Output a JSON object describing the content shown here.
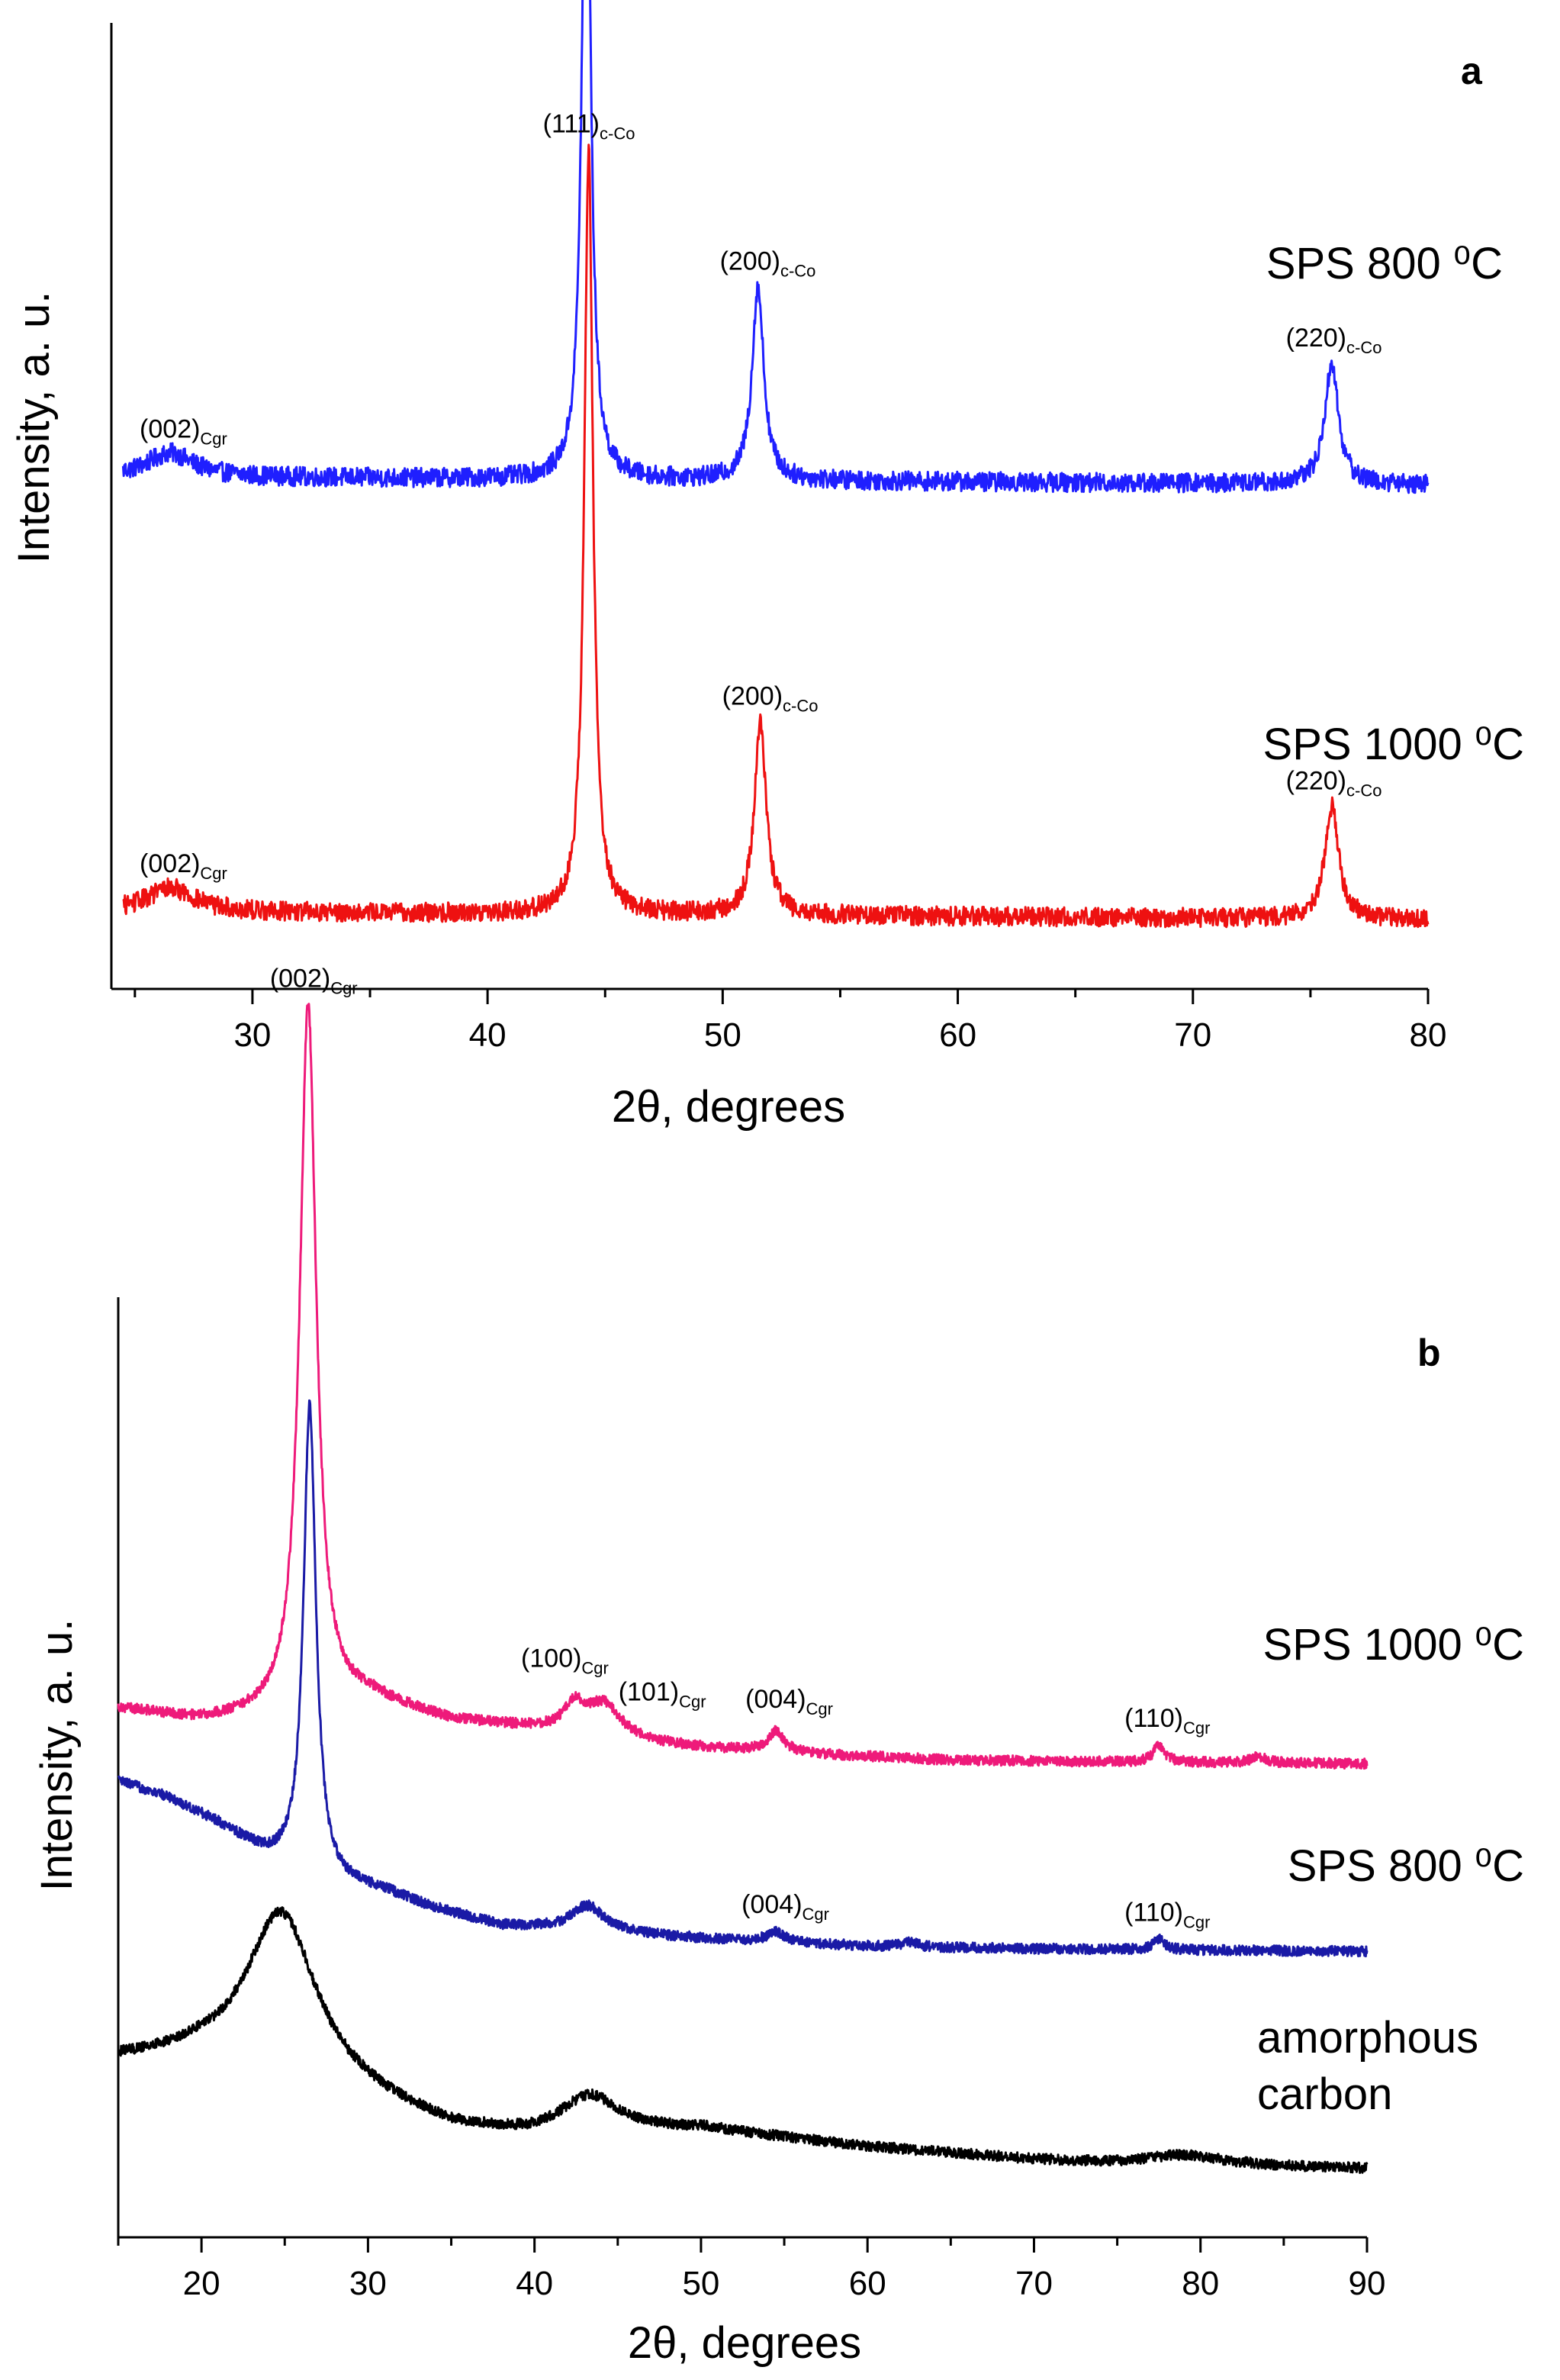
{
  "chart_data": [
    {
      "panel": "a",
      "type": "line",
      "xlabel": "2θ, degrees",
      "ylabel": "Intensity, a. u.",
      "xlim": [
        24,
        80
      ],
      "xticks": [
        30,
        40,
        50,
        60,
        70,
        80
      ],
      "yticks": "none",
      "grid": false,
      "baseline_noise": 0.012,
      "series": [
        {
          "name": "SPS 800 ⁰C",
          "color": "#1f1fff",
          "offset": 0.54,
          "baseline": [
            [
              24,
              0.01
            ],
            [
              80,
              0.0
            ]
          ],
          "peaks": [
            {
              "x": 26.5,
              "height": 0.03,
              "width": 1.2
            },
            {
              "x": 44.2,
              "height": 0.92,
              "width": 0.22
            },
            {
              "x": 51.5,
              "height": 0.24,
              "width": 0.3
            },
            {
              "x": 75.9,
              "height": 0.15,
              "width": 0.35
            }
          ]
        },
        {
          "name": "SPS 1000 ⁰C",
          "color": "#ee1111",
          "offset": 0.0,
          "baseline": [
            [
              24,
              0.01
            ],
            [
              80,
              0.0
            ]
          ],
          "peaks": [
            {
              "x": 26.5,
              "height": 0.03,
              "width": 1.2
            },
            {
              "x": 44.3,
              "height": 0.95,
              "width": 0.22
            },
            {
              "x": 51.6,
              "height": 0.24,
              "width": 0.3
            },
            {
              "x": 75.9,
              "height": 0.14,
              "width": 0.35
            }
          ]
        }
      ],
      "annotations": [
        {
          "series": 0,
          "text": "(002)",
          "sub": "Cgr",
          "x": 26.5
        },
        {
          "series": 0,
          "text": "(111)",
          "sub": "c-Co",
          "x": 44.2
        },
        {
          "series": 0,
          "text": "(200)",
          "sub": "c-Co",
          "x": 51.5
        },
        {
          "series": 0,
          "text": "(220)",
          "sub": "c-Co",
          "x": 75.9
        },
        {
          "series": 1,
          "text": "(002)",
          "sub": "Cgr",
          "x": 26.5
        },
        {
          "series": 1,
          "text": "(111)",
          "sub": "c-Co",
          "x": 44.3
        },
        {
          "series": 1,
          "text": "(200)",
          "sub": "c-Co",
          "x": 51.6
        },
        {
          "series": 1,
          "text": "(220)",
          "sub": "c-Co",
          "x": 75.9
        }
      ]
    },
    {
      "panel": "b",
      "type": "line",
      "xlabel": "2θ, degrees",
      "ylabel": "Intensity, a. u.",
      "xlim": [
        15,
        90
      ],
      "xticks": [
        20,
        30,
        40,
        50,
        60,
        70,
        80,
        90
      ],
      "yticks": "none",
      "grid": false,
      "baseline_noise": 0.006,
      "series": [
        {
          "name": "SPS 1000 ⁰C",
          "color": "#ee1a7a",
          "offset": 0.48,
          "baseline": [
            [
              15,
              0.065
            ],
            [
              20,
              0.05
            ],
            [
              25,
              0.055
            ],
            [
              30,
              0.075
            ],
            [
              35,
              0.05
            ],
            [
              40,
              0.04
            ],
            [
              45,
              0.025
            ],
            [
              50,
              0.018
            ],
            [
              55,
              0.012
            ],
            [
              65,
              0.004
            ],
            [
              75,
              0.002
            ],
            [
              90,
              0.0
            ]
          ],
          "peaks": [
            {
              "x": 26.4,
              "height": 0.83,
              "width": 0.6
            },
            {
              "x": 42.4,
              "height": 0.03,
              "width": 0.8
            },
            {
              "x": 44.2,
              "height": 0.04,
              "width": 1.3
            },
            {
              "x": 54.5,
              "height": 0.025,
              "width": 0.6
            },
            {
              "x": 77.5,
              "height": 0.02,
              "width": 0.4
            },
            {
              "x": 83.5,
              "height": 0.008,
              "width": 0.5
            }
          ]
        },
        {
          "name": "SPS 800 ⁰C",
          "color": "#1a1aa6",
          "offset": 0.26,
          "baseline": [
            [
              15,
              0.2
            ],
            [
              18,
              0.18
            ],
            [
              21,
              0.15
            ],
            [
              24,
              0.11
            ],
            [
              28,
              0.08
            ],
            [
              31,
              0.07
            ],
            [
              34,
              0.05
            ],
            [
              38,
              0.03
            ],
            [
              42,
              0.025
            ],
            [
              50,
              0.015
            ],
            [
              60,
              0.006
            ],
            [
              70,
              0.003
            ],
            [
              90,
              0.0
            ]
          ],
          "peaks": [
            {
              "x": 26.5,
              "height": 0.55,
              "width": 0.45
            },
            {
              "x": 43.2,
              "height": 0.03,
              "width": 1.2
            },
            {
              "x": 54.5,
              "height": 0.012,
              "width": 0.6
            },
            {
              "x": 62.5,
              "height": 0.006,
              "width": 0.5
            },
            {
              "x": 77.5,
              "height": 0.012,
              "width": 0.4
            }
          ]
        },
        {
          "name": "amorphous carbon",
          "color": "#000000",
          "offset": 0.0,
          "baseline": [
            [
              15,
              0.13
            ],
            [
              20,
              0.13
            ],
            [
              30,
              0.08
            ],
            [
              35,
              0.05
            ],
            [
              40,
              0.04
            ],
            [
              50,
              0.05
            ],
            [
              60,
              0.03
            ],
            [
              70,
              0.015
            ],
            [
              75,
              0.01
            ],
            [
              90,
              0.005
            ]
          ],
          "peaks": [
            {
              "x": 24.8,
              "height": 0.2,
              "width": 2.6
            },
            {
              "x": 43.3,
              "height": 0.045,
              "width": 2.2
            },
            {
              "x": 79.0,
              "height": 0.012,
              "width": 3.0
            }
          ]
        }
      ],
      "annotations": [
        {
          "series": 0,
          "text": "(002)",
          "sub": "Cgr",
          "x": 26.4
        },
        {
          "series": 0,
          "text": "(100)",
          "sub": "Cgr",
          "x": 42.4
        },
        {
          "series": 0,
          "text": "(101)",
          "sub": "Cgr",
          "x": 45.5
        },
        {
          "series": 0,
          "text": "(004)",
          "sub": "Cgr",
          "x": 54.5
        },
        {
          "series": 0,
          "text": "(110)",
          "sub": "Cgr",
          "x": 77.5
        },
        {
          "series": 1,
          "text": "(004)",
          "sub": "Cgr",
          "x": 54.5
        },
        {
          "series": 1,
          "text": "(110)",
          "sub": "Cgr",
          "x": 77.5
        }
      ]
    }
  ]
}
